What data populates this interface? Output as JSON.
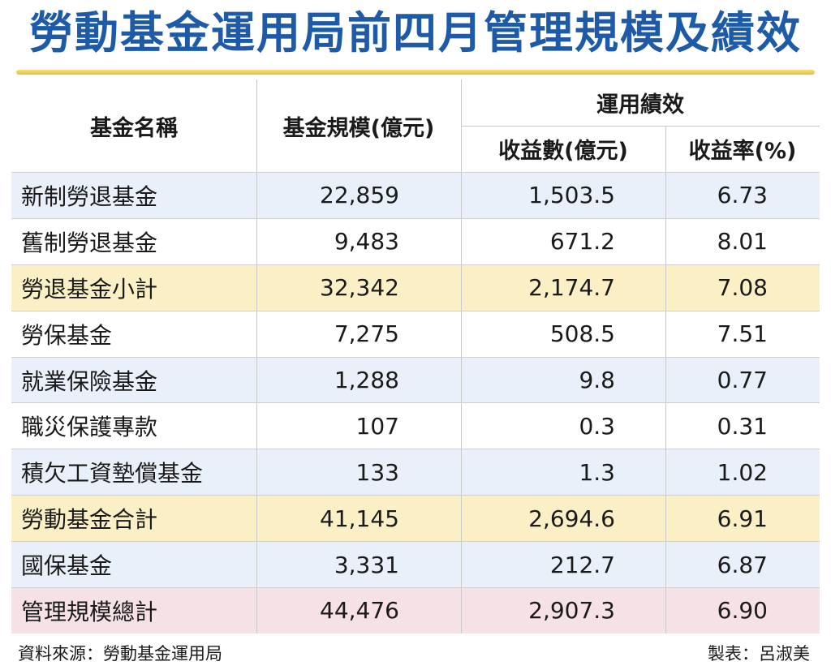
{
  "title": "勞動基金運用局前四月管理規模及績效",
  "chart_data": {
    "type": "table",
    "headers": {
      "name": "基金名稱",
      "size": "基金規模(億元)",
      "performance": "運用績效",
      "amount": "收益數(億元)",
      "rate": "收益率(%)"
    },
    "rows": [
      {
        "name": "新制勞退基金",
        "size": "22,859",
        "amount": "1,503.5",
        "rate": "6.73",
        "style": "blue"
      },
      {
        "name": "舊制勞退基金",
        "size": "9,483",
        "amount": "671.2",
        "rate": "8.01",
        "style": "white"
      },
      {
        "name": "勞退基金小計",
        "size": "32,342",
        "amount": "2,174.7",
        "rate": "7.08",
        "style": "yellow"
      },
      {
        "name": "勞保基金",
        "size": "7,275",
        "amount": "508.5",
        "rate": "7.51",
        "style": "white"
      },
      {
        "name": "就業保險基金",
        "size": "1,288",
        "amount": "9.8",
        "rate": "0.77",
        "style": "blue"
      },
      {
        "name": "職災保護專款",
        "size": "107",
        "amount": "0.3",
        "rate": "0.31",
        "style": "white"
      },
      {
        "name": "積欠工資墊償基金",
        "size": "133",
        "amount": "1.3",
        "rate": "1.02",
        "style": "blue"
      },
      {
        "name": "勞動基金合計",
        "size": "41,145",
        "amount": "2,694.6",
        "rate": "6.91",
        "style": "yellow"
      },
      {
        "name": "國保基金",
        "size": "3,331",
        "amount": "212.7",
        "rate": "6.87",
        "style": "blue"
      },
      {
        "name": "管理規模總計",
        "size": "44,476",
        "amount": "2,907.3",
        "rate": "6.90",
        "style": "pink"
      }
    ]
  },
  "footer": {
    "source": "資料來源：勞動基金運用局",
    "credit": "製表：呂淑美"
  },
  "colors": {
    "title": "#1d5aa8",
    "rule": "#e6c23a",
    "row_blue": "#e9f0fa",
    "row_yellow": "#fbf0c5",
    "row_pink": "#f6e1e7"
  }
}
